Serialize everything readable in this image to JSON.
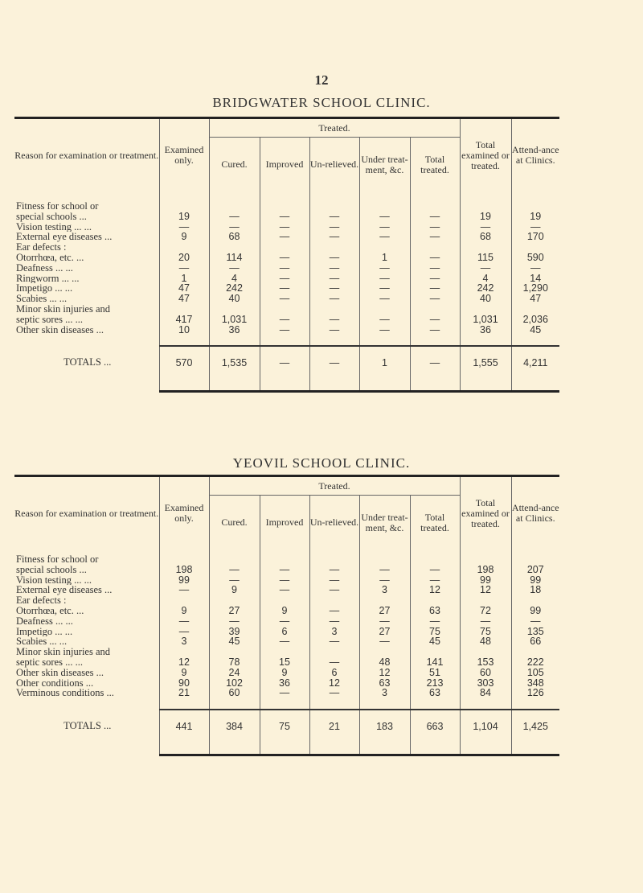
{
  "page_number": "12",
  "columns": {
    "reason": "Reason for examination or treatment.",
    "examined_only": "Examined only.",
    "treated": "Treated.",
    "cured": "Cured.",
    "improved": "Improved",
    "unrelieved": "Un-relieved.",
    "under_treatment": "Under treat-ment, &c.",
    "total_treated": "Total treated.",
    "total_examined": "Total examined or treated.",
    "attendance": "Attend-ance at Clinics."
  },
  "tables": [
    {
      "title": "BRIDGWATER SCHOOL CLINIC.",
      "rows": [
        {
          "label": "Fitness for school or",
          "values": []
        },
        {
          "label": "  special schools ...",
          "values": [
            "19",
            "—",
            "—",
            "—",
            "—",
            "—",
            "19",
            "19"
          ]
        },
        {
          "label": "Vision testing ... ...",
          "values": [
            "—",
            "—",
            "—",
            "—",
            "—",
            "—",
            "—",
            "—"
          ]
        },
        {
          "label": "External eye diseases ...",
          "values": [
            "9",
            "68",
            "—",
            "—",
            "—",
            "—",
            "68",
            "170"
          ]
        },
        {
          "label": "Ear defects :",
          "values": []
        },
        {
          "label": "  Otorrhœa, etc. ...",
          "values": [
            "20",
            "114",
            "—",
            "—",
            "1",
            "—",
            "115",
            "590"
          ]
        },
        {
          "label": "  Deafness ... ...",
          "values": [
            "—",
            "—",
            "—",
            "—",
            "—",
            "—",
            "—",
            "—"
          ]
        },
        {
          "label": "Ringworm ... ...",
          "values": [
            "1",
            "4",
            "—",
            "—",
            "—",
            "—",
            "4",
            "14"
          ]
        },
        {
          "label": "Impetigo ... ...",
          "values": [
            "47",
            "242",
            "—",
            "—",
            "—",
            "—",
            "242",
            "1,290"
          ]
        },
        {
          "label": "Scabies ... ...",
          "values": [
            "47",
            "40",
            "—",
            "—",
            "—",
            "—",
            "40",
            "47"
          ]
        },
        {
          "label": "Minor skin injuries and",
          "values": []
        },
        {
          "label": "  septic sores ... ...",
          "values": [
            "417",
            "1,031",
            "—",
            "—",
            "—",
            "—",
            "1,031",
            "2,036"
          ]
        },
        {
          "label": "Other skin diseases ...",
          "values": [
            "10",
            "36",
            "—",
            "—",
            "—",
            "—",
            "36",
            "45"
          ]
        }
      ],
      "totals": {
        "label": "TOTALS ...",
        "values": [
          "570",
          "1,535",
          "—",
          "—",
          "1",
          "—",
          "1,555",
          "4,211"
        ]
      }
    },
    {
      "title": "YEOVIL SCHOOL CLINIC.",
      "rows": [
        {
          "label": "Fitness for school or",
          "values": []
        },
        {
          "label": "  special schools ...",
          "values": [
            "198",
            "—",
            "—",
            "—",
            "—",
            "—",
            "198",
            "207"
          ]
        },
        {
          "label": "Vision testing ... ...",
          "values": [
            "99",
            "—",
            "—",
            "—",
            "—",
            "—",
            "99",
            "99"
          ]
        },
        {
          "label": "External eye diseases ...",
          "values": [
            "—",
            "9",
            "—",
            "—",
            "3",
            "12",
            "12",
            "18"
          ]
        },
        {
          "label": "Ear defects :",
          "values": []
        },
        {
          "label": "  Otorrhœa, etc. ...",
          "values": [
            "9",
            "27",
            "9",
            "—",
            "27",
            "63",
            "72",
            "99"
          ]
        },
        {
          "label": "  Deafness ... ...",
          "values": [
            "—",
            "—",
            "—",
            "—",
            "—",
            "—",
            "—",
            "—"
          ]
        },
        {
          "label": "Impetigo ... ...",
          "values": [
            "—",
            "39",
            "6",
            "3",
            "27",
            "75",
            "75",
            "135"
          ]
        },
        {
          "label": "Scabies ... ...",
          "values": [
            "3",
            "45",
            "—",
            "—",
            "—",
            "45",
            "48",
            "66"
          ]
        },
        {
          "label": "Minor skin injuries and",
          "values": []
        },
        {
          "label": "  septic sores ... ...",
          "values": [
            "12",
            "78",
            "15",
            "—",
            "48",
            "141",
            "153",
            "222"
          ]
        },
        {
          "label": "Other skin diseases ...",
          "values": [
            "9",
            "24",
            "9",
            "6",
            "12",
            "51",
            "60",
            "105"
          ]
        },
        {
          "label": "Other conditions ...",
          "values": [
            "90",
            "102",
            "36",
            "12",
            "63",
            "213",
            "303",
            "348"
          ]
        },
        {
          "label": "Verminous conditions ...",
          "values": [
            "21",
            "60",
            "—",
            "—",
            "3",
            "63",
            "84",
            "126"
          ]
        }
      ],
      "totals": {
        "label": "TOTALS ...",
        "values": [
          "441",
          "384",
          "75",
          "21",
          "183",
          "663",
          "1,104",
          "1,425"
        ]
      }
    }
  ]
}
